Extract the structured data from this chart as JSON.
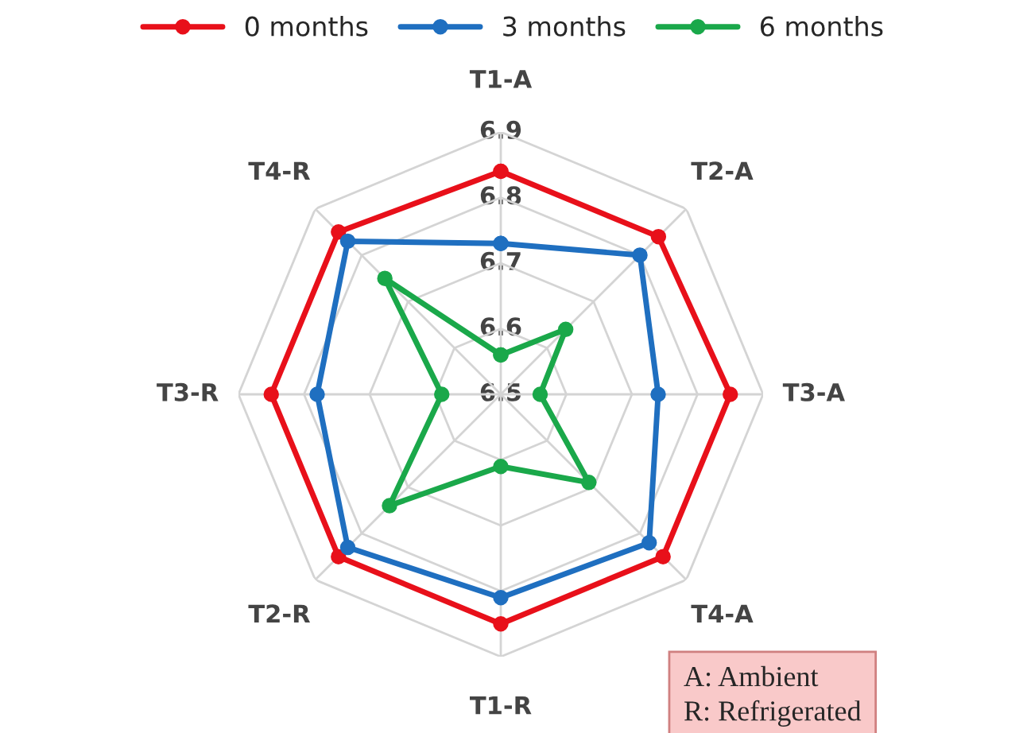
{
  "chart_data": {
    "type": "radar",
    "categories": [
      "T1-A",
      "T2-A",
      "T3-A",
      "T4-A",
      "T1-R",
      "T2-R",
      "T3-R",
      "T4-R"
    ],
    "series": [
      {
        "name": "0 months",
        "color": "#e8101a",
        "values": [
          6.84,
          6.84,
          6.85,
          6.85,
          6.85,
          6.85,
          6.85,
          6.85
        ]
      },
      {
        "name": "3 months",
        "color": "#1f6fc0",
        "values": [
          6.73,
          6.8,
          6.74,
          6.82,
          6.81,
          6.83,
          6.78,
          6.83
        ]
      },
      {
        "name": "6 months",
        "color": "#1aa84a",
        "values": [
          6.56,
          6.64,
          6.56,
          6.69,
          6.61,
          6.74,
          6.59,
          6.75
        ]
      }
    ],
    "ylim": [
      6.5,
      6.9
    ],
    "yticks": [
      6.5,
      6.6,
      6.7,
      6.8,
      6.9
    ],
    "grid": true,
    "legend": "top",
    "marker": "circle",
    "annotations": [
      "A: Ambient",
      "R: Refrigerated"
    ]
  }
}
